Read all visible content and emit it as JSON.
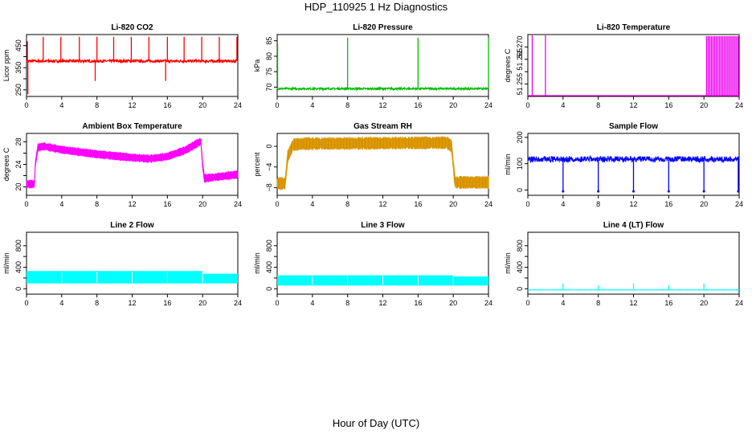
{
  "figure": {
    "title": "HDP_110925  1 Hz Diagnostics",
    "xlabel": "Hour of Day (UTC)"
  },
  "chart_data": [
    {
      "id": "co2",
      "type": "line",
      "title": "Li-820 CO2",
      "ylabel": "Licor ppm",
      "color": "#ff0000",
      "xlim": [
        0,
        24
      ],
      "ylim": [
        220,
        500
      ],
      "xticks": [
        0,
        4,
        8,
        12,
        16,
        20,
        24
      ],
      "yticks": [
        250,
        300,
        350,
        400,
        450
      ],
      "ytick_labels": [
        "250",
        "",
        "350",
        "",
        "450"
      ],
      "baseline": 380,
      "noise": 6,
      "spikes": [
        [
          0.1,
          470
        ],
        [
          0.15,
          230
        ],
        [
          1.9,
          490
        ],
        [
          3.9,
          490
        ],
        [
          6.0,
          490
        ],
        [
          7.8,
          290
        ],
        [
          8.0,
          490
        ],
        [
          9.9,
          490
        ],
        [
          11.9,
          490
        ],
        [
          13.9,
          490
        ],
        [
          15.8,
          290
        ],
        [
          16.0,
          490
        ],
        [
          17.9,
          490
        ],
        [
          19.9,
          490
        ],
        [
          21.9,
          490
        ],
        [
          23.9,
          490
        ]
      ]
    },
    {
      "id": "pressure",
      "type": "line",
      "title": "Li-820 Pressure",
      "ylabel": "kPa",
      "color": "#00bb00",
      "xlim": [
        0,
        24
      ],
      "ylim": [
        67,
        87
      ],
      "xticks": [
        0,
        4,
        8,
        12,
        16,
        20,
        24
      ],
      "yticks": [
        70,
        75,
        80,
        85
      ],
      "ytick_labels": [
        "70",
        "75",
        "80",
        "85"
      ],
      "baseline": 69.5,
      "noise": 0.3,
      "spikes": [
        [
          0.05,
          84
        ],
        [
          8.0,
          86
        ],
        [
          16.0,
          86
        ],
        [
          24.0,
          86
        ]
      ]
    },
    {
      "id": "temperature",
      "type": "line",
      "title": "Li-820 Temperature",
      "ylabel": "degrees C",
      "color": "#ee00ee",
      "xlim": [
        0,
        24
      ],
      "ylim": [
        51.25,
        51.275
      ],
      "xticks": [
        0,
        4,
        8,
        12,
        16,
        20,
        24
      ],
      "yticks": [
        51.255,
        51.26,
        51.265,
        51.27
      ],
      "ytick_labels": [
        "51.255",
        "",
        "51.265",
        "51.270"
      ],
      "baseline": 51.25,
      "spikes": [
        [
          0.5,
          51.275
        ],
        [
          2.0,
          51.275
        ]
      ],
      "burst": [
        20.3,
        23.9
      ]
    },
    {
      "id": "ambient",
      "type": "band",
      "title": "Ambient Box Temperature",
      "ylabel": "degrees C",
      "color": "#ff00ff",
      "xlim": [
        0,
        24
      ],
      "ylim": [
        18.5,
        29.5
      ],
      "xticks": [
        0,
        4,
        8,
        12,
        16,
        20,
        24
      ],
      "yticks": [
        20,
        22,
        24,
        26,
        28
      ],
      "ytick_labels": [
        "20",
        "",
        "24",
        "",
        "28"
      ],
      "center": [
        [
          0,
          20.5
        ],
        [
          0.9,
          20.5
        ],
        [
          1.0,
          24
        ],
        [
          1.3,
          27
        ],
        [
          2.0,
          27.2
        ],
        [
          4,
          26.6
        ],
        [
          8,
          25.8
        ],
        [
          12,
          25.2
        ],
        [
          14,
          25.0
        ],
        [
          16,
          25.4
        ],
        [
          18,
          26.5
        ],
        [
          19.8,
          28.1
        ],
        [
          20.0,
          24
        ],
        [
          20.2,
          21.5
        ],
        [
          24,
          22.2
        ]
      ],
      "halfwidth": 0.7
    },
    {
      "id": "rh",
      "type": "band",
      "title": "Gas Stream RH",
      "ylabel": "percent",
      "color": "#dd9900",
      "xlim": [
        0,
        24
      ],
      "ylim": [
        -9.5,
        2.5
      ],
      "xticks": [
        0,
        4,
        8,
        12,
        16,
        20,
        24
      ],
      "yticks": [
        -8,
        -4,
        0
      ],
      "ytick_labels": [
        "−8",
        "−4",
        "0"
      ],
      "center": [
        [
          0,
          -7.2
        ],
        [
          0.9,
          -7.2
        ],
        [
          1.2,
          -2
        ],
        [
          1.8,
          0.3
        ],
        [
          3,
          0.5
        ],
        [
          12,
          0.6
        ],
        [
          19.3,
          0.7
        ],
        [
          19.8,
          0
        ],
        [
          20.2,
          -7.0
        ],
        [
          24,
          -7.0
        ]
      ],
      "halfwidth": 1.2
    },
    {
      "id": "sample-flow",
      "type": "line",
      "title": "Sample Flow",
      "ylabel": "ml/min",
      "color": "#0000ff",
      "xlim": [
        0,
        24
      ],
      "ylim": [
        -20,
        215
      ],
      "xticks": [
        0,
        4,
        8,
        12,
        16,
        20,
        24
      ],
      "yticks": [
        0,
        100,
        200
      ],
      "ytick_labels": [
        "0",
        "100",
        "200"
      ],
      "baseline": 115,
      "noise": 8,
      "dips": [
        [
          4,
          -5
        ],
        [
          8,
          -5
        ],
        [
          12,
          -5
        ],
        [
          16,
          -5
        ],
        [
          20,
          -5
        ],
        [
          23.9,
          -5
        ]
      ]
    },
    {
      "id": "line2-flow",
      "type": "flat",
      "title": "Line 2 Flow",
      "ylabel": "ml/min",
      "color": "#00ffff",
      "xlim": [
        0,
        24
      ],
      "ylim": [
        -100,
        1050
      ],
      "xticks": [
        0,
        4,
        8,
        12,
        16,
        20,
        24
      ],
      "yticks": [
        0,
        200,
        400,
        600,
        800
      ],
      "ytick_labels": [
        "0",
        "",
        "400",
        "",
        "800"
      ],
      "top": 330,
      "bottom": 100,
      "end_top": 280
    },
    {
      "id": "line3-flow",
      "type": "flat",
      "title": "Line 3 Flow",
      "ylabel": "ml/min",
      "color": "#00ffff",
      "xlim": [
        0,
        24
      ],
      "ylim": [
        -100,
        1050
      ],
      "xticks": [
        0,
        4,
        8,
        12,
        16,
        20,
        24
      ],
      "yticks": [
        0,
        200,
        400,
        600,
        800
      ],
      "ytick_labels": [
        "0",
        "",
        "400",
        "",
        "800"
      ],
      "top": 250,
      "bottom": 60,
      "end_top": 230
    },
    {
      "id": "line4-flow",
      "type": "line",
      "title": "Line 4 (LT) Flow",
      "ylabel": "ml/min",
      "color": "#00ffff",
      "xlim": [
        0,
        24
      ],
      "ylim": [
        -100,
        1050
      ],
      "xticks": [
        0,
        4,
        8,
        12,
        16,
        20,
        24
      ],
      "yticks": [
        0,
        200,
        400,
        600,
        800
      ],
      "ytick_labels": [
        "0",
        "",
        "400",
        "",
        "800"
      ],
      "baseline": -20,
      "noise": 3,
      "spikes": [
        [
          4,
          100
        ],
        [
          8,
          60
        ],
        [
          12,
          100
        ],
        [
          16,
          60
        ],
        [
          20,
          100
        ]
      ]
    }
  ]
}
